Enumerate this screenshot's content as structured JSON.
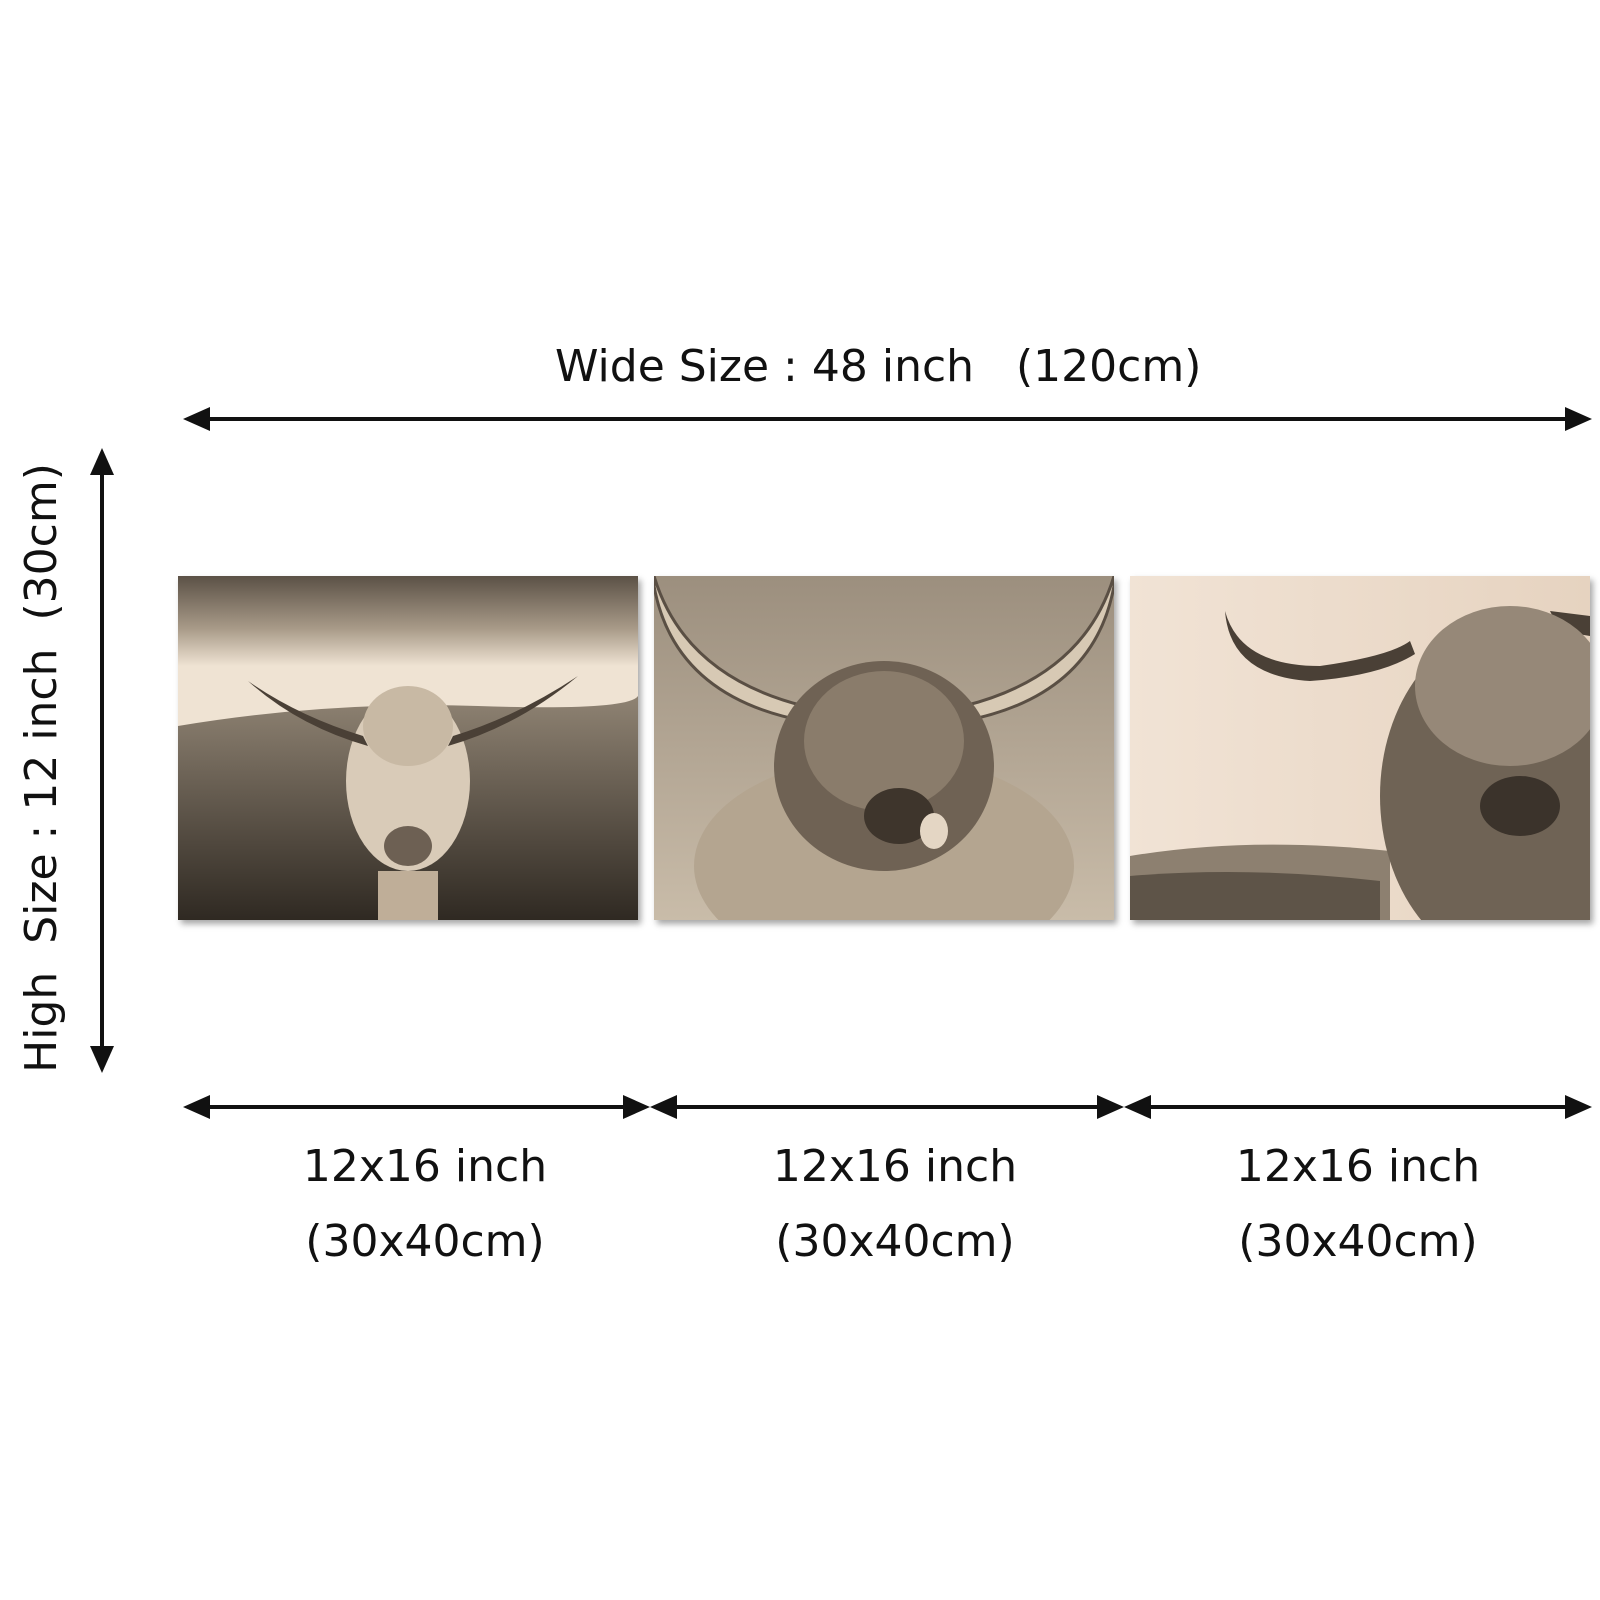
{
  "wide_label": "Wide Size : 48 inch   (120cm)",
  "high_label": "High  Size : 12 inch  (30cm)",
  "panels": [
    {
      "subject": "highland-cow-standing-in-field",
      "size": "12x16 inch",
      "size_metric": "(30x40cm)"
    },
    {
      "subject": "highland-cow-licking-nose",
      "size": "12x16 inch",
      "size_metric": "(30x40cm)"
    },
    {
      "subject": "highland-cow-closeup",
      "size": "12x16 inch",
      "size_metric": "(30x40cm)"
    }
  ],
  "colors": {
    "sepia_light": "#e8dccd",
    "sepia_mid": "#a89a88",
    "sepia_dark": "#3a332b",
    "ink": "#111111"
  }
}
